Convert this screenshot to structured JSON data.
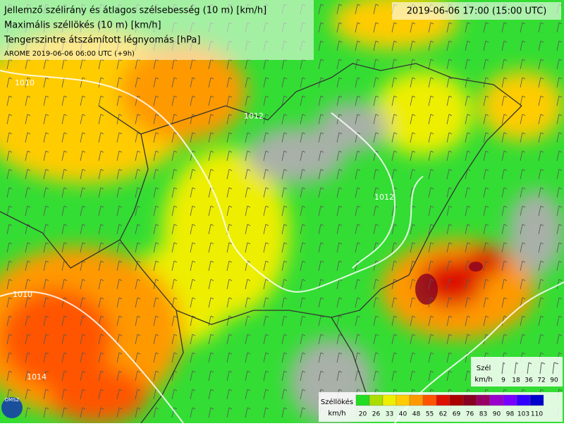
{
  "header": {
    "lines": [
      "Jellemző szélirány és átlagos szélsebesség (10 m) [km/h]",
      "Maximális széllökés (10 m) [km/h]",
      "Tengerszintre átszámított légnyomás [hPa]",
      "AROME 2019-06-06 06:00 UTC (+9h)"
    ],
    "valid_time": "2019-06-06 17:00 (15:00 UTC)"
  },
  "isobar_labels": [
    "1010",
    "1012",
    "1010",
    "1014",
    "1012"
  ],
  "wind_legend": {
    "title": "Szél",
    "unit": "km/h",
    "values": [
      9,
      18,
      36,
      72,
      90
    ]
  },
  "gust_legend": {
    "title": "Széllökés",
    "unit": "km/h",
    "levels": [
      {
        "value": 20,
        "color": "#22dd22"
      },
      {
        "value": 26,
        "color": "#aadd00"
      },
      {
        "value": 33,
        "color": "#eeee00"
      },
      {
        "value": 40,
        "color": "#ffcc00"
      },
      {
        "value": 48,
        "color": "#ff9900"
      },
      {
        "value": 55,
        "color": "#ff5500"
      },
      {
        "value": 62,
        "color": "#dd1100"
      },
      {
        "value": 69,
        "color": "#aa0000"
      },
      {
        "value": 76,
        "color": "#880022"
      },
      {
        "value": 83,
        "color": "#990066"
      },
      {
        "value": 90,
        "color": "#9900cc"
      },
      {
        "value": 98,
        "color": "#7700ff"
      },
      {
        "value": 103,
        "color": "#3300ff"
      },
      {
        "value": 110,
        "color": "#0000cc"
      }
    ]
  },
  "logo": "OMSZ"
}
